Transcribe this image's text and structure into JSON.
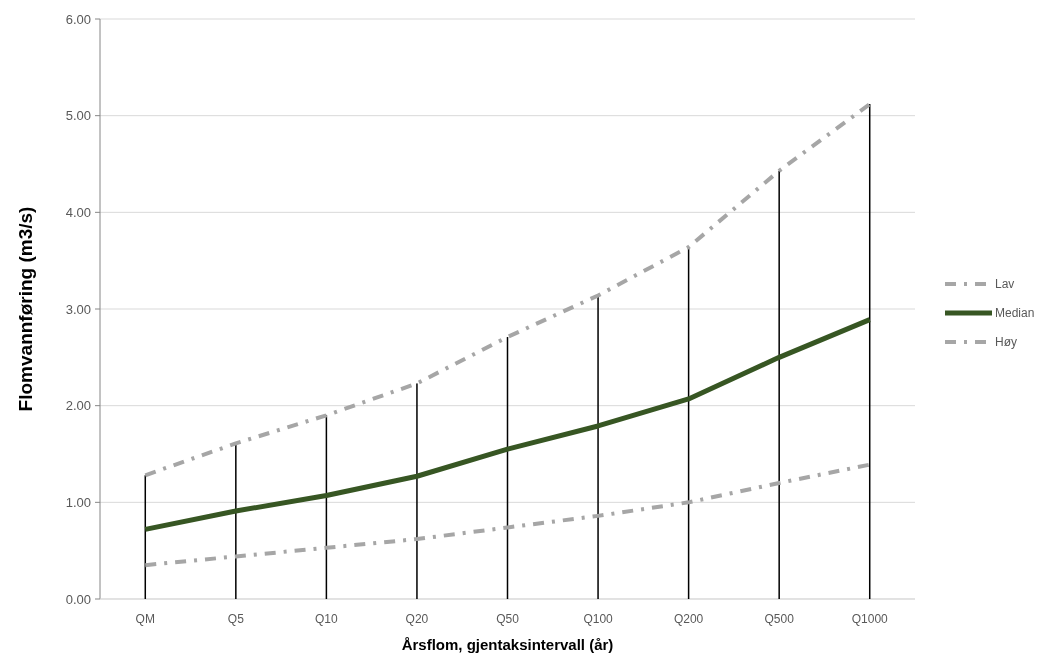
{
  "chart_data": {
    "type": "line",
    "xlabel": "Årsflom, gjentaksintervall (år)",
    "ylabel": "Flomvannføring (m3/s)",
    "categories": [
      "QM",
      "Q5",
      "Q10",
      "Q20",
      "Q50",
      "Q100",
      "Q200",
      "Q500",
      "Q1000"
    ],
    "series": [
      {
        "type": "bar",
        "color": "#000000",
        "values": [
          1.28,
          1.61,
          1.9,
          2.23,
          2.71,
          3.14,
          3.64,
          4.43,
          5.12
        ]
      },
      {
        "name": "Lav",
        "color": "#a6a6a6",
        "line_style": "dashed",
        "values": [
          0.35,
          0.44,
          0.53,
          0.62,
          0.74,
          0.86,
          1.0,
          1.2,
          1.39
        ]
      },
      {
        "name": "Median",
        "color": "#375623",
        "line_style": "solid",
        "values": [
          0.72,
          0.91,
          1.07,
          1.27,
          1.55,
          1.79,
          2.07,
          2.5,
          2.89
        ]
      },
      {
        "name": "Høy",
        "color": "#a6a6a6",
        "line_style": "dashed",
        "values": [
          1.28,
          1.61,
          1.9,
          2.23,
          2.71,
          3.14,
          3.64,
          4.43,
          5.12
        ]
      }
    ],
    "ylim": [
      0,
      6
    ],
    "yticks": [
      {
        "value": 0,
        "label": "0.00"
      },
      {
        "value": 1,
        "label": "1.00"
      },
      {
        "value": 2,
        "label": "2.00"
      },
      {
        "value": 3,
        "label": "3.00"
      },
      {
        "value": 4,
        "label": "4.00"
      },
      {
        "value": 5,
        "label": "5.00"
      },
      {
        "value": 6,
        "label": "6.00"
      }
    ],
    "grid": "y",
    "legend": "right"
  }
}
